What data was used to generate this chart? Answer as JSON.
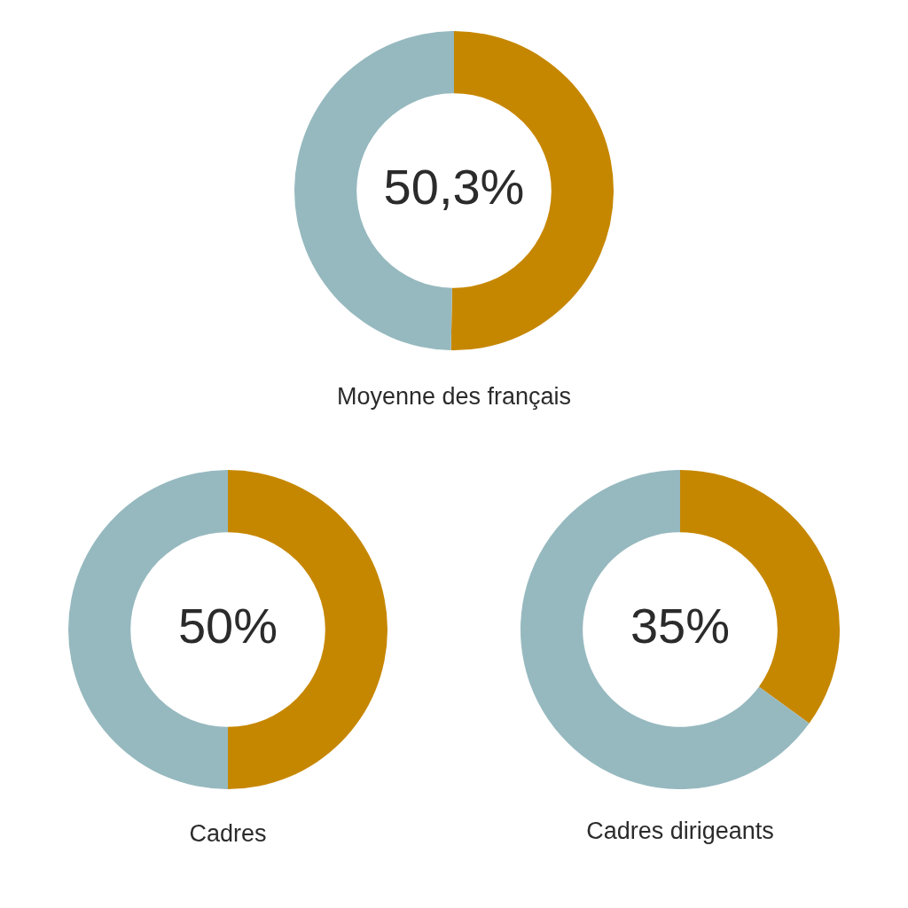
{
  "chart_data": [
    {
      "type": "donut",
      "title": "Moyenne des français",
      "categories": [
        null,
        null
      ],
      "values": [
        50.3,
        49.7
      ],
      "colors": [
        "#c68700",
        "#96b9bf"
      ],
      "value_labels": [
        "50,3%",
        null
      ]
    },
    {
      "type": "donut",
      "title": "Cadres",
      "categories": [
        null,
        null
      ],
      "values": [
        50,
        50
      ],
      "colors": [
        "#c68700",
        "#96b9bf"
      ],
      "value_labels": [
        "50%",
        null
      ]
    },
    {
      "type": "donut",
      "title": "Cadres dirigeants",
      "categories": [
        null,
        null
      ],
      "values": [
        35,
        65
      ],
      "colors": [
        "#c68700",
        "#96b9bf"
      ],
      "value_labels": [
        "35%",
        null
      ]
    }
  ]
}
